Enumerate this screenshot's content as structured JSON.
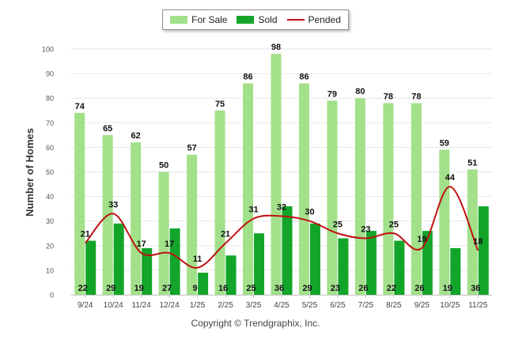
{
  "chart_data": {
    "type": "bar",
    "title": "",
    "xlabel": "",
    "ylabel": "Number of Homes",
    "ylim": [
      0,
      100
    ],
    "yticks": [
      "0",
      "10",
      "20",
      "30",
      "40",
      "50",
      "60",
      "70",
      "80",
      "90",
      "100"
    ],
    "categories": [
      "9/24",
      "10/24",
      "11/24",
      "12/24",
      "1/25",
      "2/25",
      "3/25",
      "4/25",
      "5/25",
      "6/25",
      "7/25",
      "8/25",
      "9/25",
      "10/25",
      "11/25"
    ],
    "series": [
      {
        "name": "For Sale",
        "type": "bar",
        "color": "#a2e08a",
        "values": [
          74,
          65,
          62,
          50,
          57,
          75,
          86,
          98,
          86,
          79,
          80,
          78,
          78,
          59,
          51
        ]
      },
      {
        "name": "Sold",
        "type": "bar",
        "color": "#13a52a",
        "values": [
          22,
          29,
          19,
          27,
          9,
          16,
          25,
          36,
          29,
          23,
          26,
          22,
          26,
          19,
          36
        ]
      },
      {
        "name": "Pended",
        "type": "line",
        "color": "#bf1111",
        "values": [
          21,
          33,
          17,
          17,
          11,
          21,
          31,
          32,
          30,
          25,
          23,
          25,
          19,
          44,
          18
        ]
      }
    ],
    "legend": "top-center",
    "grid": true
  },
  "credit": "Copyright © Trendgraphix, Inc."
}
